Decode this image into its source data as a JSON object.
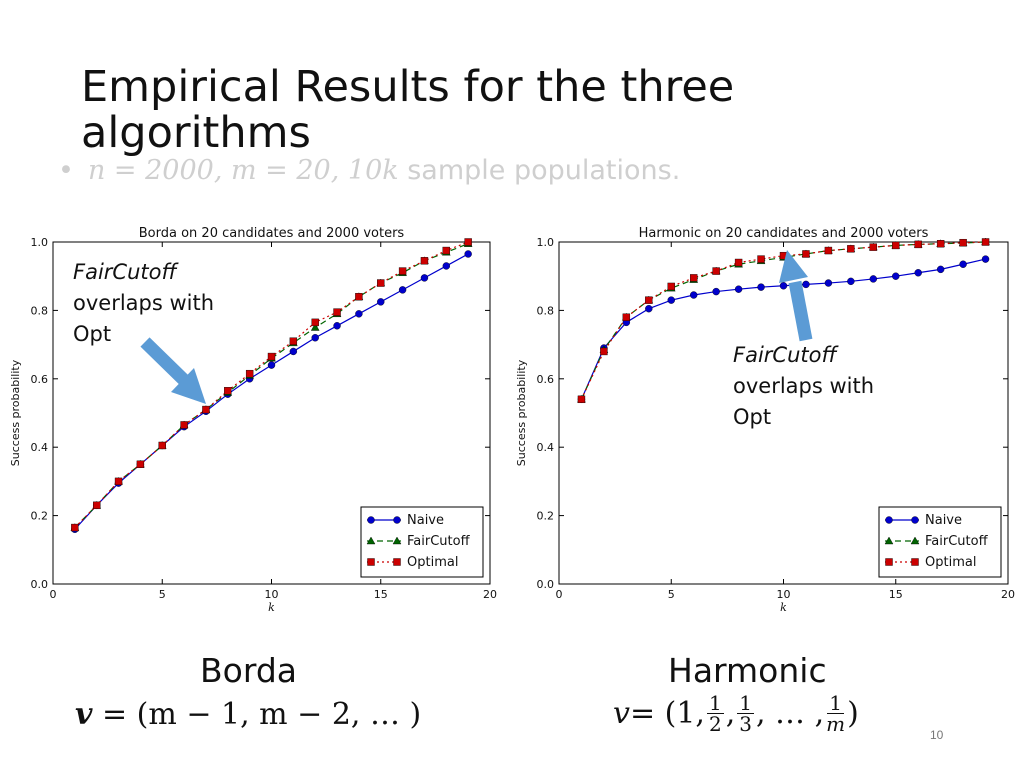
{
  "slide": {
    "title": "Empirical Results for the three algorithms",
    "bullet": {
      "symbol": "•",
      "math": "n = 2000, m = 20, 10k",
      "text": "sample populations."
    },
    "page_number": "10"
  },
  "callouts": {
    "left": {
      "italic": "FairCutoff",
      "rest": "overlaps with Opt"
    },
    "right": {
      "italic": "FairCutoff",
      "rest": "overlaps with Opt"
    },
    "arrow_color": "#5b9bd5"
  },
  "rules": {
    "borda": {
      "name": "Borda",
      "formula_lhs": "v",
      "formula_rhs": " = (m − 1, m − 2, … )"
    },
    "harmonic": {
      "name": "Harmonic",
      "formula_lhs": "v",
      "formula_eq": " = (1,",
      "frac1_num": "1",
      "frac1_den": "2",
      "frac2_num": "1",
      "frac2_den": "3",
      "dots": ", … ,",
      "frac3_num": "1",
      "frac3_den": "m",
      "close": ")"
    }
  },
  "chart_data": [
    {
      "type": "line",
      "title": "Borda on 20 candidates and 2000 voters",
      "xlabel": "k",
      "ylabel": "Success probability",
      "xlim": [
        0,
        20
      ],
      "ylim": [
        0.0,
        1.0
      ],
      "xticks": [
        "0",
        "5",
        "10",
        "15",
        "20"
      ],
      "yticks": [
        "0.0",
        "0.2",
        "0.4",
        "0.6",
        "0.8",
        "1.0"
      ],
      "grid": false,
      "legend_position": "bottom-right",
      "x": [
        1,
        2,
        3,
        4,
        5,
        6,
        7,
        8,
        9,
        10,
        11,
        12,
        13,
        14,
        15,
        16,
        17,
        18,
        19
      ],
      "series": [
        {
          "name": "Naive",
          "color": "#0000cc",
          "line": "solid",
          "marker": "circle",
          "values": [
            0.16,
            0.23,
            0.295,
            0.35,
            0.405,
            0.46,
            0.505,
            0.555,
            0.6,
            0.64,
            0.68,
            0.72,
            0.755,
            0.79,
            0.825,
            0.86,
            0.895,
            0.93,
            0.965
          ]
        },
        {
          "name": "FairCutoff",
          "color": "#006400",
          "line": "dashed",
          "marker": "triangle",
          "values": [
            0.165,
            0.23,
            0.3,
            0.35,
            0.405,
            0.465,
            0.51,
            0.56,
            0.61,
            0.66,
            0.705,
            0.75,
            0.79,
            0.84,
            0.88,
            0.91,
            0.945,
            0.97,
            0.995
          ]
        },
        {
          "name": "Optimal",
          "color": "#cc0000",
          "line": "dotted",
          "marker": "square",
          "values": [
            0.165,
            0.23,
            0.3,
            0.35,
            0.405,
            0.465,
            0.51,
            0.565,
            0.615,
            0.665,
            0.71,
            0.765,
            0.795,
            0.84,
            0.88,
            0.915,
            0.945,
            0.975,
            1.0
          ]
        }
      ]
    },
    {
      "type": "line",
      "title": "Harmonic on 20 candidates and 2000 voters",
      "xlabel": "k",
      "ylabel": "Success probability",
      "xlim": [
        0,
        20
      ],
      "ylim": [
        0.0,
        1.0
      ],
      "xticks": [
        "0",
        "5",
        "10",
        "15",
        "20"
      ],
      "yticks": [
        "0.0",
        "0.2",
        "0.4",
        "0.6",
        "0.8",
        "1.0"
      ],
      "grid": false,
      "legend_position": "bottom-right",
      "x": [
        1,
        2,
        3,
        4,
        5,
        6,
        7,
        8,
        9,
        10,
        11,
        12,
        13,
        14,
        15,
        16,
        17,
        18,
        19
      ],
      "series": [
        {
          "name": "Naive",
          "color": "#0000cc",
          "line": "solid",
          "marker": "circle",
          "values": [
            0.54,
            0.69,
            0.765,
            0.805,
            0.83,
            0.845,
            0.855,
            0.862,
            0.868,
            0.872,
            0.876,
            0.88,
            0.885,
            0.892,
            0.9,
            0.91,
            0.92,
            0.935,
            0.95
          ]
        },
        {
          "name": "FairCutoff",
          "color": "#006400",
          "line": "dashed",
          "marker": "triangle",
          "values": [
            0.54,
            0.685,
            0.78,
            0.83,
            0.865,
            0.89,
            0.915,
            0.935,
            0.945,
            0.955,
            0.965,
            0.975,
            0.98,
            0.985,
            0.99,
            0.993,
            0.995,
            0.997,
            1.0
          ]
        },
        {
          "name": "Optimal",
          "color": "#cc0000",
          "line": "dotted",
          "marker": "square",
          "values": [
            0.54,
            0.68,
            0.78,
            0.83,
            0.87,
            0.895,
            0.915,
            0.94,
            0.95,
            0.96,
            0.965,
            0.975,
            0.98,
            0.985,
            0.99,
            0.993,
            0.995,
            0.998,
            1.0
          ]
        }
      ]
    }
  ]
}
